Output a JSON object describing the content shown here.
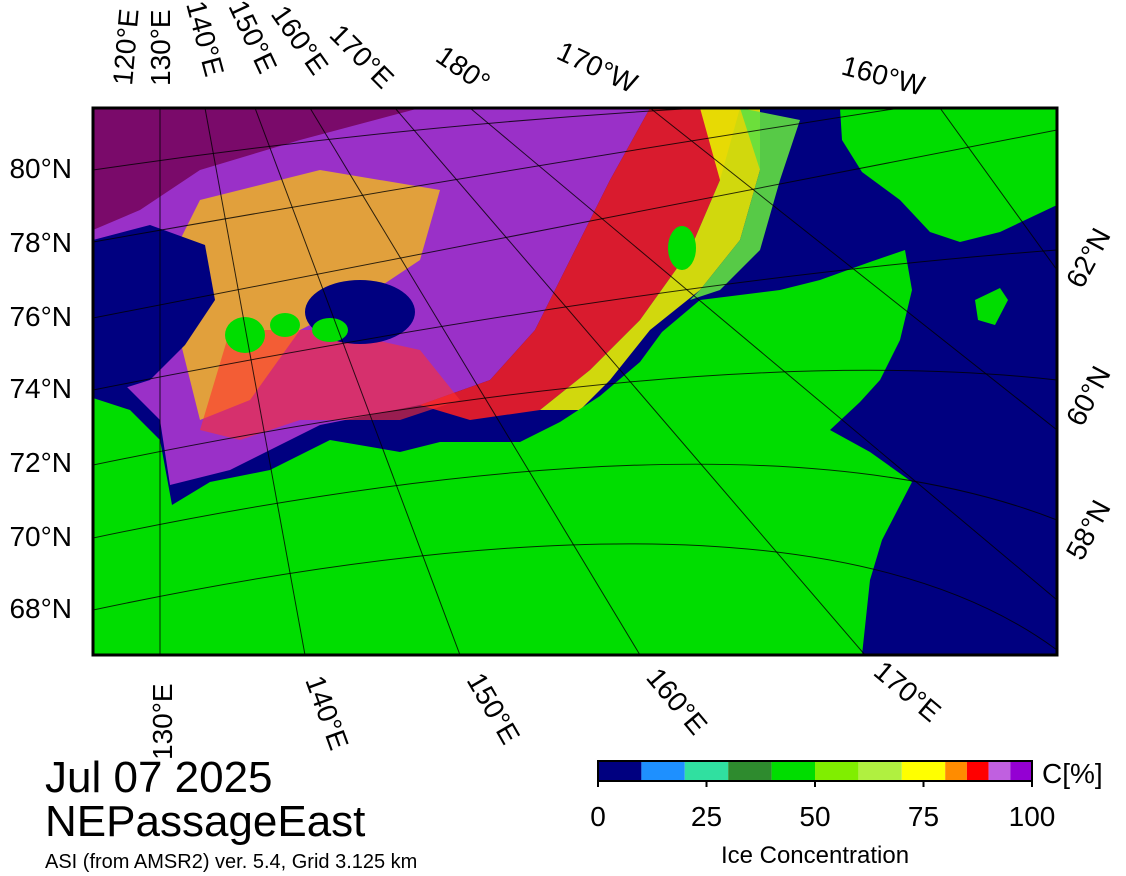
{
  "title": "Jul 07 2025",
  "region": "NEPassageEast",
  "source": "ASI (from AMSR2) ver. 5.4,  Grid 3.125 km",
  "map": {
    "lat_labels_left": [
      "80°N",
      "78°N",
      "76°N",
      "74°N",
      "72°N",
      "70°N",
      "68°N"
    ],
    "lat_labels_right": [
      "62°N",
      "60°N",
      "58°N"
    ],
    "lon_labels_top": [
      "120°E",
      "130°E",
      "140°E",
      "150°E",
      "160°E",
      "170°E",
      "180°",
      "170°W",
      "160°W"
    ],
    "lon_labels_bottom": [
      "130°E",
      "140°E",
      "150°E",
      "160°E",
      "170°E"
    ]
  },
  "colorbar": {
    "label": "Ice Concentration",
    "unit": "C[%]",
    "bounds": [
      0,
      10,
      20,
      30,
      40,
      50,
      60,
      70,
      80,
      85,
      90,
      95,
      100
    ],
    "colors": [
      "#000080",
      "#1e90ff",
      "#30e0a0",
      "#2e8b2e",
      "#00dd00",
      "#80ee00",
      "#b0f040",
      "#ffff00",
      "#ff8c00",
      "#ff0000",
      "#c060e0",
      "#9400d3"
    ],
    "ticks": [
      0,
      25,
      50,
      75,
      100
    ]
  }
}
